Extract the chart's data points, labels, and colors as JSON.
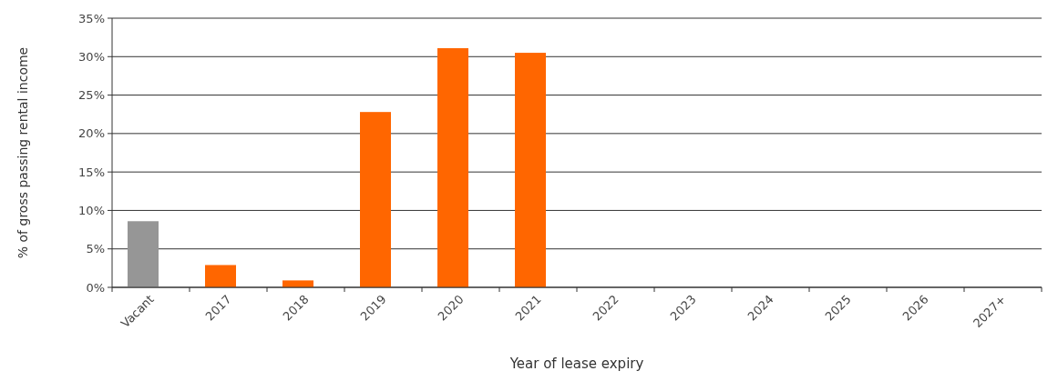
{
  "chart_data": {
    "type": "bar",
    "xlabel": "Year of lease expiry",
    "ylabel": "% of gross passing rental income",
    "categories": [
      "Vacant",
      "2017",
      "2018",
      "2019",
      "2020",
      "2021",
      "2022",
      "2023",
      "2024",
      "2025",
      "2026",
      "2027+"
    ],
    "values": [
      8.6,
      2.9,
      0.9,
      22.8,
      31.1,
      30.5,
      0,
      0,
      0,
      0,
      0,
      0
    ],
    "colors": [
      "#969696",
      "#ff6600",
      "#ff6600",
      "#ff6600",
      "#ff6600",
      "#ff6600",
      "#ff6600",
      "#ff6600",
      "#ff6600",
      "#ff6600",
      "#ff6600",
      "#ff6600"
    ],
    "ylim": [
      0,
      35
    ],
    "yticks": [
      {
        "value": 0,
        "label": "0%"
      },
      {
        "value": 5,
        "label": "5%"
      },
      {
        "value": 10,
        "label": "10%"
      },
      {
        "value": 15,
        "label": "15%"
      },
      {
        "value": 20,
        "label": "20%"
      },
      {
        "value": 25,
        "label": "25%"
      },
      {
        "value": 30,
        "label": "30%"
      },
      {
        "value": 35,
        "label": "35%"
      }
    ],
    "grid": "y"
  }
}
